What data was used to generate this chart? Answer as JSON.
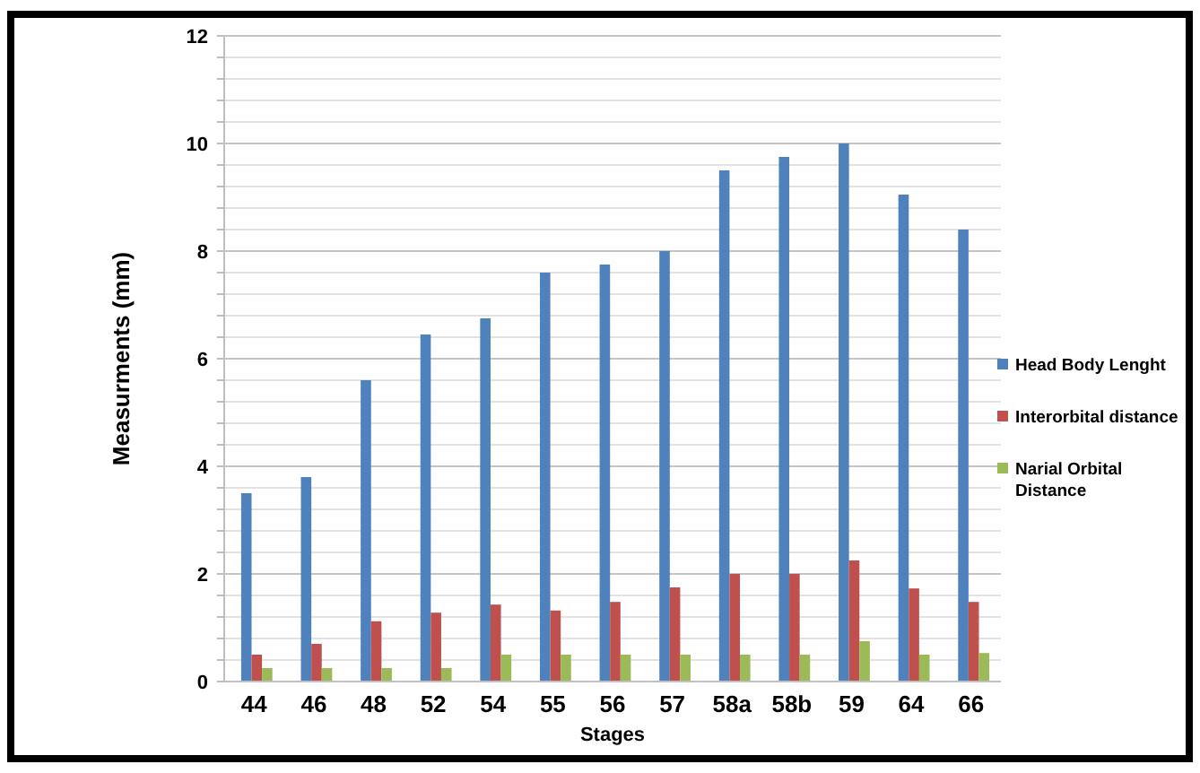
{
  "chart_data": {
    "type": "bar",
    "xlabel": "Stages",
    "ylabel": "Measurments (mm)",
    "categories": [
      "44",
      "46",
      "48",
      "52",
      "54",
      "55",
      "56",
      "57",
      "58a",
      "58b",
      "59",
      "64",
      "66"
    ],
    "series": [
      {
        "name": "Head Body Lenght",
        "color": "#4f81bd",
        "values": [
          3.5,
          3.8,
          5.6,
          6.45,
          6.75,
          7.6,
          7.75,
          8,
          9.5,
          9.75,
          10,
          9.05,
          8.4
        ]
      },
      {
        "name": "Interorbital distance",
        "color": "#c0504d",
        "values": [
          0.5,
          0.7,
          1.12,
          1.28,
          1.43,
          1.32,
          1.48,
          1.75,
          2,
          2,
          2.25,
          1.73,
          1.48
        ]
      },
      {
        "name": "Narial Orbital Distance",
        "color": "#9bbb59",
        "values": [
          0.25,
          0.25,
          0.25,
          0.25,
          0.5,
          0.5,
          0.5,
          0.5,
          0.5,
          0.5,
          0.75,
          0.5,
          0.53
        ]
      }
    ],
    "ylim": [
      0,
      12
    ],
    "yticks": [
      0,
      {
        "value": 0.4,
        "label": null
      },
      {
        "value": 0.8,
        "label": null
      },
      {
        "value": 1.2,
        "label": null
      },
      {
        "value": 1.6,
        "label": null
      },
      2,
      {
        "value": 2.4,
        "label": null
      },
      {
        "value": 2.8,
        "label": null
      },
      {
        "value": 3.2,
        "label": null
      },
      {
        "value": 3.6,
        "label": null
      },
      4,
      {
        "value": 4.4,
        "label": null
      },
      {
        "value": 4.8,
        "label": null
      },
      {
        "value": 5.2,
        "label": null
      },
      {
        "value": 5.6,
        "label": null
      },
      6,
      {
        "value": 6.4,
        "label": null
      },
      {
        "value": 6.8,
        "label": null
      },
      {
        "value": 7.2,
        "label": null
      },
      {
        "value": 7.6,
        "label": null
      },
      8,
      {
        "value": 8.4,
        "label": null
      },
      {
        "value": 8.8,
        "label": null
      },
      {
        "value": 9.2,
        "label": null
      },
      {
        "value": 9.6,
        "label": null
      },
      10,
      {
        "value": 10.4,
        "label": null
      },
      {
        "value": 10.8,
        "label": null
      },
      {
        "value": 11.2,
        "label": null
      },
      {
        "value": 11.6,
        "label": null
      },
      12
    ],
    "grid": "y",
    "legend": "right"
  }
}
